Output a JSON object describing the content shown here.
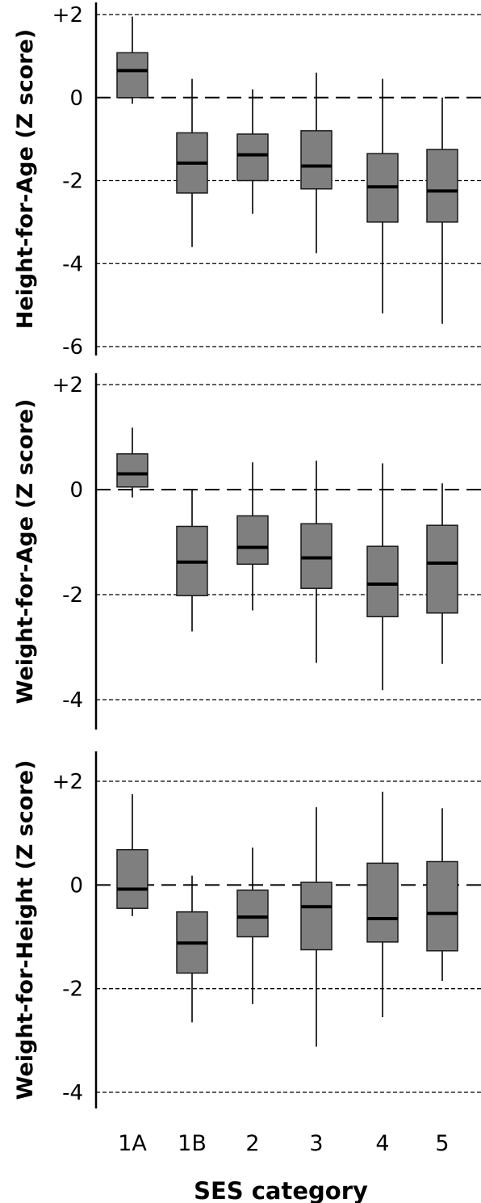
{
  "chart_data": [
    {
      "type": "box",
      "ylabel": "Height-for-Age (Z score)",
      "ylim": [
        -6,
        2
      ],
      "yticks": [
        "+2",
        "0",
        "-2",
        "-4",
        "-6"
      ],
      "ytick_values": [
        2,
        0,
        -2,
        -4,
        -6
      ],
      "grid": "horizontal dashed at ticks",
      "categories": [
        "1A",
        "1B",
        "2",
        "3",
        "4",
        "5"
      ],
      "boxes": [
        {
          "category": "1A",
          "min": -0.15,
          "q1": 0.0,
          "median": 0.65,
          "q3": 1.08,
          "max": 1.95
        },
        {
          "category": "1B",
          "min": -3.6,
          "q1": -2.3,
          "median": -1.58,
          "q3": -0.85,
          "max": 0.45
        },
        {
          "category": "2",
          "min": -2.8,
          "q1": -2.0,
          "median": -1.38,
          "q3": -0.88,
          "max": 0.2
        },
        {
          "category": "3",
          "min": -3.75,
          "q1": -2.2,
          "median": -1.65,
          "q3": -0.8,
          "max": 0.6
        },
        {
          "category": "4",
          "min": -5.2,
          "q1": -3.0,
          "median": -2.15,
          "q3": -1.35,
          "max": 0.45
        },
        {
          "category": "5",
          "min": -5.45,
          "q1": -3.0,
          "median": -2.25,
          "q3": -1.25,
          "max": 0.0
        }
      ]
    },
    {
      "type": "box",
      "ylabel": "Weight-for-Age (Z score)",
      "ylim": [
        -4,
        2
      ],
      "yticks": [
        "+2",
        "0",
        "-2",
        "-4"
      ],
      "ytick_values": [
        2,
        0,
        -2,
        -4
      ],
      "grid": "horizontal dashed at ticks",
      "categories": [
        "1A",
        "1B",
        "2",
        "3",
        "4",
        "5"
      ],
      "boxes": [
        {
          "category": "1A",
          "min": -0.15,
          "q1": 0.05,
          "median": 0.3,
          "q3": 0.68,
          "max": 1.18
        },
        {
          "category": "1B",
          "min": -2.7,
          "q1": -2.02,
          "median": -1.38,
          "q3": -0.7,
          "max": 0.0
        },
        {
          "category": "2",
          "min": -2.3,
          "q1": -1.42,
          "median": -1.1,
          "q3": -0.5,
          "max": 0.52
        },
        {
          "category": "3",
          "min": -3.3,
          "q1": -1.88,
          "median": -1.3,
          "q3": -0.65,
          "max": 0.55
        },
        {
          "category": "4",
          "min": -3.82,
          "q1": -2.42,
          "median": -1.8,
          "q3": -1.08,
          "max": 0.5
        },
        {
          "category": "5",
          "min": -3.32,
          "q1": -2.35,
          "median": -1.4,
          "q3": -0.68,
          "max": 0.12
        }
      ]
    },
    {
      "type": "box",
      "ylabel": "Weight-for-Height (Z score)",
      "ylim": [
        -4,
        2
      ],
      "yticks": [
        "+2",
        "0",
        "-2",
        "-4"
      ],
      "ytick_values": [
        2,
        0,
        -2,
        -4
      ],
      "grid": "horizontal dashed at ticks",
      "categories": [
        "1A",
        "1B",
        "2",
        "3",
        "4",
        "5"
      ],
      "boxes": [
        {
          "category": "1A",
          "min": -0.6,
          "q1": -0.45,
          "median": -0.08,
          "q3": 0.68,
          "max": 1.75
        },
        {
          "category": "1B",
          "min": -2.65,
          "q1": -1.7,
          "median": -1.12,
          "q3": -0.52,
          "max": 0.18
        },
        {
          "category": "2",
          "min": -2.3,
          "q1": -1.0,
          "median": -0.62,
          "q3": -0.1,
          "max": 0.72
        },
        {
          "category": "3",
          "min": -3.12,
          "q1": -1.25,
          "median": -0.42,
          "q3": 0.05,
          "max": 1.5
        },
        {
          "category": "4",
          "min": -2.55,
          "q1": -1.1,
          "median": -0.65,
          "q3": 0.42,
          "max": 1.8
        },
        {
          "category": "5",
          "min": -1.85,
          "q1": -1.27,
          "median": -0.55,
          "q3": 0.45,
          "max": 1.48
        }
      ]
    }
  ],
  "xlabel": "SES category",
  "colors": {
    "box_fill": "#7f7f7f",
    "box_stroke": "#1a1a1a",
    "median": "#000000",
    "whisker": "#000000",
    "grid": "#000000",
    "axis": "#000000"
  }
}
